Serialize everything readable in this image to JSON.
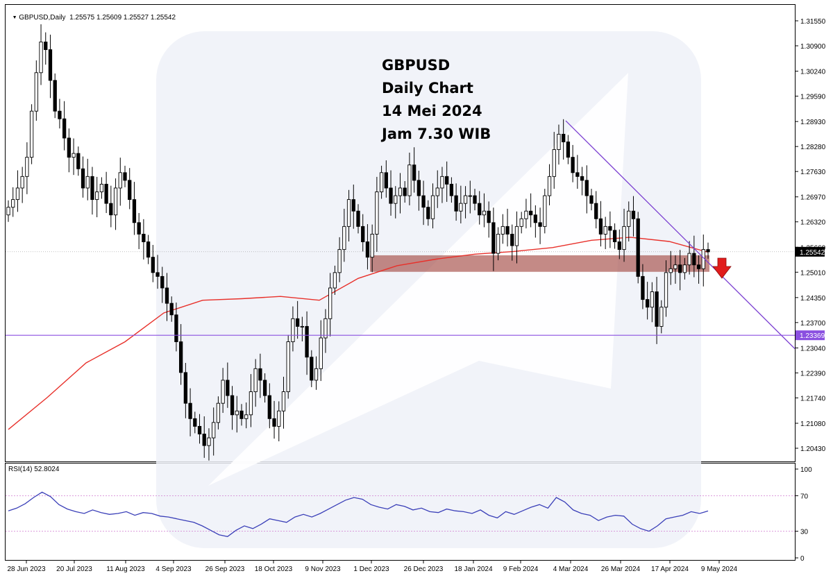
{
  "header": {
    "symbol_info": "GBPUSD,Daily  1.25575 1.25609 1.25527 1.25542"
  },
  "annotation": {
    "lines": [
      "GBPUSD",
      "Daily Chart",
      "14 Mei 2024",
      "Jam 7.30 WIB"
    ]
  },
  "colors": {
    "candle_bull": "#ffffff",
    "candle_bear": "#000000",
    "moving_average": "#e8302a",
    "trendline": "#7b3fd1",
    "support_line": "#8a4fe0",
    "resistance_zone": "#a0423c",
    "rsi_line": "#3a3fb8",
    "rsi_levels": "#d07ad0",
    "arrow": "#e11c1c",
    "price_tag_current": "#000000",
    "price_tag_support": "#8a4fe0"
  },
  "chart_data": [
    {
      "type": "candlestick",
      "title": "GBPUSD,Daily",
      "y_axis": {
        "ticks": [
          "1.31550",
          "1.30900",
          "1.30240",
          "1.29590",
          "1.28930",
          "1.28280",
          "1.27630",
          "1.26970",
          "1.26320",
          "1.25660",
          "1.25010",
          "1.24350",
          "1.23700",
          "1.23040",
          "1.22390",
          "1.21740",
          "1.21080",
          "1.20430"
        ],
        "tick_values": [
          1.3155,
          1.309,
          1.3024,
          1.2959,
          1.2893,
          1.2828,
          1.2763,
          1.2697,
          1.2632,
          1.2566,
          1.2501,
          1.2435,
          1.237,
          1.2304,
          1.2239,
          1.2174,
          1.2108,
          1.2043
        ],
        "ylim": [
          1.2,
          1.3195
        ]
      },
      "x_axis": {
        "labels": [
          "28 Jun 2023",
          "20 Jul 2023",
          "11 Aug 2023",
          "4 Sep 2023",
          "26 Sep 2023",
          "18 Oct 2023",
          "9 Nov 2023",
          "1 Dec 2023",
          "26 Dec 2023",
          "18 Jan 2024",
          "9 Feb 2024",
          "4 Mar 2024",
          "26 Mar 2024",
          "17 Apr 2024",
          "9 May 2024"
        ]
      },
      "current_price": "1.25542",
      "support_level": {
        "label": "1.23369",
        "value": 1.23369
      },
      "resistance_zone": {
        "from": 1.2502,
        "to": 1.2545
      },
      "trendline": [
        {
          "date": "4 Mar 2024",
          "value": 1.2895
        },
        {
          "date": "beyond 9 May 2024",
          "value": 1.2302
        }
      ],
      "moving_average": {
        "color": "#e8302a",
        "values": [
          1.2092,
          1.2175,
          1.2265,
          1.232,
          1.2395,
          1.2428,
          1.2432,
          1.2438,
          1.2428,
          1.2485,
          1.2518,
          1.2535,
          1.2548,
          1.2555,
          1.2565,
          1.2584,
          1.2592,
          1.2581,
          1.2553
        ]
      },
      "closes": [
        1.267,
        1.269,
        1.272,
        1.275,
        1.28,
        1.292,
        1.302,
        1.31,
        1.308,
        1.3,
        1.292,
        1.29,
        1.285,
        1.28,
        1.281,
        1.277,
        1.272,
        1.275,
        1.269,
        1.271,
        1.273,
        1.268,
        1.265,
        1.272,
        1.276,
        1.274,
        1.269,
        1.263,
        1.26,
        1.258,
        1.254,
        1.25,
        1.249,
        1.246,
        1.242,
        1.239,
        1.232,
        1.224,
        1.216,
        1.212,
        1.21,
        1.208,
        1.205,
        1.207,
        1.211,
        1.216,
        1.222,
        1.218,
        1.213,
        1.214,
        1.212,
        1.213,
        1.219,
        1.225,
        1.222,
        1.218,
        1.212,
        1.21,
        1.214,
        1.219,
        1.232,
        1.238,
        1.236,
        1.236,
        1.228,
        1.222,
        1.225,
        1.233,
        1.238,
        1.246,
        1.25,
        1.256,
        1.262,
        1.269,
        1.266,
        1.262,
        1.258,
        1.254,
        1.26,
        1.271,
        1.276,
        1.272,
        1.268,
        1.27,
        1.272,
        1.27,
        1.278,
        1.274,
        1.27,
        1.267,
        1.264,
        1.27,
        1.272,
        1.275,
        1.273,
        1.27,
        1.266,
        1.268,
        1.27,
        1.27,
        1.268,
        1.265,
        1.266,
        1.263,
        1.255,
        1.26,
        1.262,
        1.26,
        1.257,
        1.262,
        1.264,
        1.266,
        1.265,
        1.263,
        1.262,
        1.27,
        1.275,
        1.282,
        1.286,
        1.284,
        1.28,
        1.276,
        1.275,
        1.274,
        1.27,
        1.268,
        1.264,
        1.26,
        1.262,
        1.261,
        1.258,
        1.256,
        1.262,
        1.266,
        1.264,
        1.249,
        1.243,
        1.241,
        1.245,
        1.236,
        1.241,
        1.25,
        1.251,
        1.252,
        1.25,
        1.252,
        1.255,
        1.252,
        1.251,
        1.256,
        1.2554
      ]
    },
    {
      "type": "line",
      "title": "RSI(14) 52.8024",
      "ylim": [
        0,
        100
      ],
      "y_ticks": [
        "100",
        "70",
        "30",
        "0"
      ],
      "levels": [
        70,
        30
      ],
      "values": [
        53,
        56,
        61,
        68,
        74,
        69,
        60,
        55,
        52,
        50,
        54,
        51,
        49,
        50,
        52,
        48,
        51,
        50,
        47,
        46,
        44,
        42,
        40,
        36,
        31,
        26,
        24,
        31,
        36,
        33,
        38,
        44,
        42,
        40,
        46,
        49,
        46,
        50,
        55,
        60,
        65,
        68,
        66,
        60,
        57,
        55,
        60,
        58,
        54,
        56,
        52,
        51,
        55,
        53,
        52,
        50,
        54,
        48,
        45,
        52,
        49,
        53,
        57,
        60,
        56,
        68,
        63,
        54,
        50,
        48,
        42,
        46,
        48,
        47,
        38,
        33,
        30,
        36,
        44,
        46,
        48,
        52,
        50,
        52.8
      ]
    }
  ]
}
